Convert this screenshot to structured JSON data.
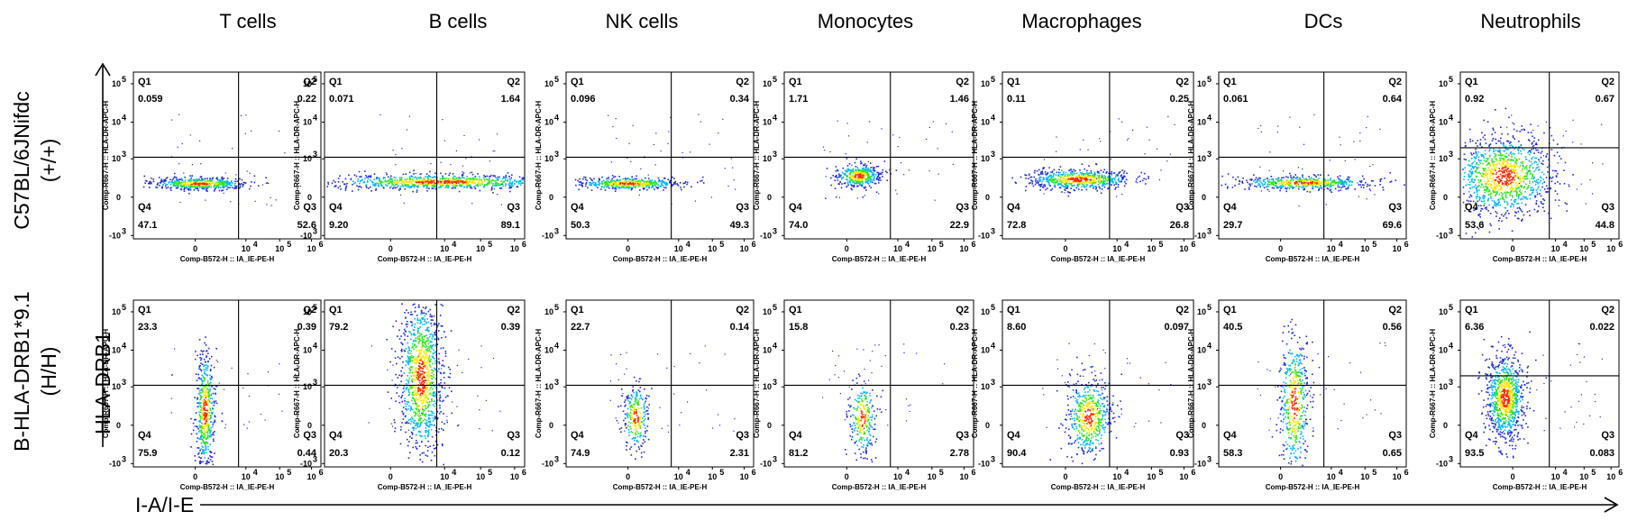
{
  "labels": {
    "cell_types": [
      "T cells",
      "B cells",
      "NK cells",
      "Monocytes",
      "Macrophages",
      "DCs",
      "Neutrophils"
    ],
    "rows": [
      {
        "line1": "C57BL/6JNifdc",
        "line2": "(+/+)"
      },
      {
        "line1": "B-HLA-DRB1*9.1",
        "line2": "(H/H)"
      }
    ],
    "y_axis": "HLA-DRB1",
    "x_axis": "I-A/I-E"
  },
  "chart_data": {
    "type": "scatter",
    "plot_kind": "flow cytometry density dot plot, quadrant gates",
    "x_axis_label": "Comp-B572-H :: IA_IE-PE-H",
    "y_axis_label": "Comp-R667-H :: HLA-DR-APC-H",
    "x_ticks": [
      "0",
      "10",
      "4",
      "10",
      "5",
      "10",
      "6"
    ],
    "x_tick_list": [
      {
        "base": "0",
        "exp": ""
      },
      {
        "base": "10",
        "exp": "4"
      },
      {
        "base": "10",
        "exp": "5"
      },
      {
        "base": "10",
        "exp": "6"
      }
    ],
    "y_tick_list": [
      {
        "base": "10",
        "exp": "5"
      },
      {
        "base": "10",
        "exp": "4"
      },
      {
        "base": "10",
        "exp": "3"
      },
      {
        "base": "0",
        "exp": ""
      },
      {
        "base": "-10",
        "exp": "3"
      }
    ],
    "scale": "biexponential (logicle)",
    "quadrant_names": [
      "Q1",
      "Q2",
      "Q3",
      "Q4"
    ],
    "panels": [
      {
        "row": 0,
        "cell": "T cells",
        "Q1": "0.059",
        "Q2": "0.22",
        "Q3": "52.6",
        "Q4": "47.1",
        "gate_x": 1500,
        "gate_y": 700
      },
      {
        "row": 0,
        "cell": "B cells",
        "Q1": "0.071",
        "Q2": "1.64",
        "Q3": "89.1",
        "Q4": "9.20",
        "gate_x": 1500,
        "gate_y": 700
      },
      {
        "row": 0,
        "cell": "NK cells",
        "Q1": "0.096",
        "Q2": "0.34",
        "Q3": "49.3",
        "Q4": "50.3",
        "gate_x": 1500,
        "gate_y": 700
      },
      {
        "row": 0,
        "cell": "Monocytes",
        "Q1": "1.71",
        "Q2": "1.46",
        "Q3": "22.9",
        "Q4": "74.0",
        "gate_x": 1500,
        "gate_y": 700
      },
      {
        "row": 0,
        "cell": "Macrophages",
        "Q1": "0.11",
        "Q2": "0.25",
        "Q3": "26.8",
        "Q4": "72.8",
        "gate_x": 1500,
        "gate_y": 700
      },
      {
        "row": 0,
        "cell": "DCs",
        "Q1": "0.061",
        "Q2": "0.64",
        "Q3": "69.6",
        "Q4": "29.7",
        "gate_x": 1500,
        "gate_y": 700
      },
      {
        "row": 0,
        "cell": "Neutrophils",
        "Q1": "0.92",
        "Q2": "0.67",
        "Q3": "44.8",
        "Q4": "53.6",
        "gate_x": 1500,
        "gate_y": 2000
      },
      {
        "row": 1,
        "cell": "T cells",
        "Q1": "23.3",
        "Q2": "0.39",
        "Q3": "0.44",
        "Q4": "75.9",
        "gate_x": 1500,
        "gate_y": 700
      },
      {
        "row": 1,
        "cell": "B cells",
        "Q1": "79.2",
        "Q2": "0.39",
        "Q3": "0.12",
        "Q4": "20.3",
        "gate_x": 1500,
        "gate_y": 700
      },
      {
        "row": 1,
        "cell": "NK cells",
        "Q1": "22.7",
        "Q2": "0.14",
        "Q3": "2.31",
        "Q4": "74.9",
        "gate_x": 1500,
        "gate_y": 700
      },
      {
        "row": 1,
        "cell": "Monocytes",
        "Q1": "15.8",
        "Q2": "0.23",
        "Q3": "2.78",
        "Q4": "81.2",
        "gate_x": 1500,
        "gate_y": 700
      },
      {
        "row": 1,
        "cell": "Macrophages",
        "Q1": "8.60",
        "Q2": "0.097",
        "Q3": "0.93",
        "Q4": "90.4",
        "gate_x": 1500,
        "gate_y": 700
      },
      {
        "row": 1,
        "cell": "DCs",
        "Q1": "40.5",
        "Q2": "0.56",
        "Q3": "0.65",
        "Q4": "58.3",
        "gate_x": 1500,
        "gate_y": 700
      },
      {
        "row": 1,
        "cell": "Neutrophils",
        "Q1": "6.36",
        "Q2": "0.022",
        "Q3": "0.083",
        "Q4": "93.5",
        "gate_x": 1500,
        "gate_y": 2000
      }
    ],
    "density_colors": [
      "#1f2bd6",
      "#00b7ff",
      "#2ee61a",
      "#ffe600",
      "#ff2a00"
    ],
    "grid": false
  }
}
